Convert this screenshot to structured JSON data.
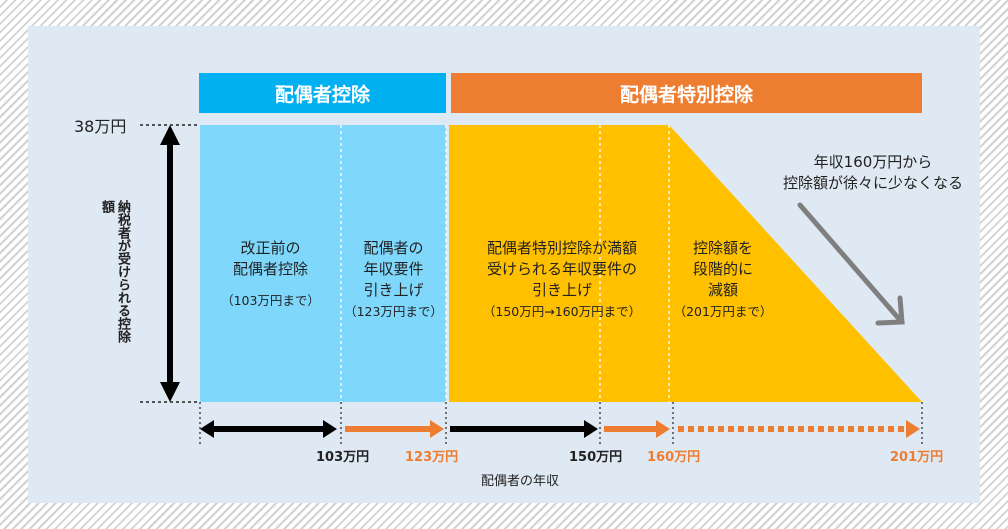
{
  "headers": {
    "spouse_deduction": "配偶者控除",
    "special_deduction": "配偶者特別控除"
  },
  "y_axis": {
    "max_label": "38万円",
    "vertical_label": "納税者が受けられる控除額"
  },
  "boxes": {
    "before_reform": {
      "line1": "改正前の",
      "line2": "配偶者控除",
      "note": "（103万円まで）"
    },
    "raise_spouse": {
      "line1": "配偶者の",
      "line2": "年収要件",
      "line3": "引き上げ",
      "note": "（123万円まで）"
    },
    "raise_special": {
      "line1": "配偶者特別控除が満額",
      "line2": "受けられる年収要件の",
      "line3": "引き上げ",
      "note": "（150万円→160万円まで）"
    },
    "reduction": {
      "line1": "控除額を",
      "line2": "段階的に",
      "line3": "減額",
      "note": "（201万円まで）"
    }
  },
  "annotation": {
    "line1": "年収160万円から",
    "line2": "控除額が徐々に少なくなる"
  },
  "x_axis": {
    "title": "配偶者の年収",
    "ticks": [
      {
        "label": "103万円",
        "color": "#222222"
      },
      {
        "label": "123万円",
        "color": "#ed7d31"
      },
      {
        "label": "150万円",
        "color": "#222222"
      },
      {
        "label": "160万円",
        "color": "#ed7d31"
      },
      {
        "label": "201万円",
        "color": "#ed7d31"
      }
    ]
  },
  "colors": {
    "blue_header": "#00b0f0",
    "orange_header": "#ed7d31",
    "light_blue": "#7fd8fc",
    "gold": "#ffc000",
    "black_arrow": "#000000",
    "orange_arrow": "#ed7d31"
  }
}
